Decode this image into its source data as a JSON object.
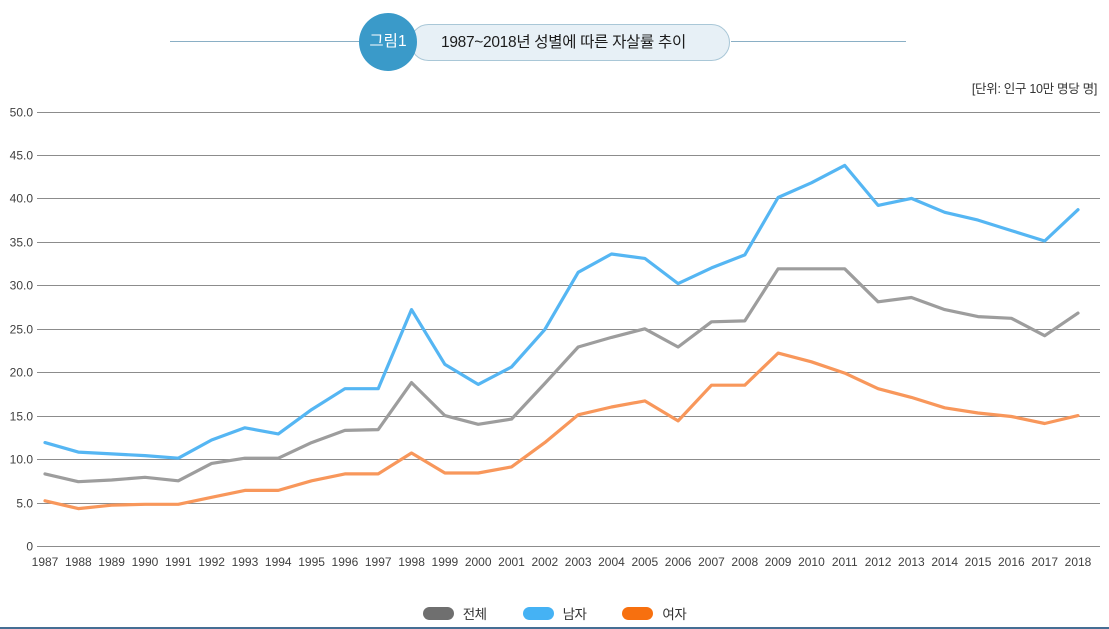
{
  "header": {
    "badge": "그림1",
    "title": "1987~2018년 성별에 따른 자살률 추이",
    "unit": "[단위: 인구 10만 명당 명]"
  },
  "colors": {
    "badge_bg": "#3A9AC9",
    "pill_bg": "#E7F0F6",
    "pill_border": "#A9C7D7",
    "header_rule": "#8AAFC5",
    "gridline": "#8C8C8C",
    "axis_text": "#404040",
    "bottom_border": "#456E94"
  },
  "chart_data": {
    "type": "line",
    "title": "1987~2018년 성별에 따른 자살률 추이",
    "unit_label": "[단위: 인구 10만 명당 명]",
    "grid": "horizontal",
    "legend_position": "bottom-center",
    "categories": [
      "1987",
      "1988",
      "1989",
      "1990",
      "1991",
      "1992",
      "1993",
      "1994",
      "1995",
      "1996",
      "1997",
      "1998",
      "1999",
      "2000",
      "2001",
      "2002",
      "2003",
      "2004",
      "2005",
      "2006",
      "2007",
      "2008",
      "2009",
      "2010",
      "2011",
      "2012",
      "2013",
      "2014",
      "2015",
      "2016",
      "2017",
      "2018"
    ],
    "y_axis": {
      "min": 0,
      "max": 50,
      "ticks": [
        {
          "value": 50,
          "label": "50.0"
        },
        {
          "value": 45,
          "label": "45.0"
        },
        {
          "value": 40,
          "label": "40.0"
        },
        {
          "value": 35,
          "label": "35.0"
        },
        {
          "value": 30,
          "label": "30.0"
        },
        {
          "value": 25,
          "label": "25.0"
        },
        {
          "value": 20,
          "label": "20.0"
        },
        {
          "value": 15,
          "label": "15.0"
        },
        {
          "value": 10,
          "label": "10.0"
        },
        {
          "value": 5,
          "label": "5.0"
        },
        {
          "value": 0,
          "label": "0"
        }
      ]
    },
    "series": [
      {
        "id": "total",
        "name": "전체",
        "color": "#9D9D9D",
        "legend_color": "#6F6F6F",
        "values": [
          8.3,
          7.4,
          7.6,
          7.9,
          7.5,
          9.5,
          10.1,
          10.1,
          11.9,
          13.3,
          13.4,
          18.8,
          15.0,
          14.0,
          14.6,
          18.7,
          22.9,
          24.0,
          25.0,
          22.9,
          25.8,
          25.9,
          31.9,
          31.9,
          31.9,
          28.1,
          28.6,
          27.2,
          26.4,
          26.2,
          24.2,
          26.8
        ]
      },
      {
        "id": "male",
        "name": "남자",
        "color": "#55B6F3",
        "legend_color": "#45B2F4",
        "values": [
          11.9,
          10.8,
          10.6,
          10.4,
          10.1,
          12.2,
          13.6,
          12.9,
          15.7,
          18.1,
          18.1,
          27.2,
          20.9,
          18.6,
          20.6,
          24.9,
          31.5,
          33.6,
          33.1,
          30.2,
          32.0,
          33.5,
          40.1,
          41.8,
          43.8,
          39.2,
          40.0,
          38.4,
          37.5,
          36.3,
          35.1,
          38.7
        ]
      },
      {
        "id": "female",
        "name": "여자",
        "color": "#F8975B",
        "legend_color": "#F7700F",
        "values": [
          5.2,
          4.3,
          4.7,
          4.8,
          4.8,
          5.6,
          6.4,
          6.4,
          7.5,
          8.3,
          8.3,
          10.7,
          8.4,
          8.4,
          9.1,
          11.9,
          15.1,
          16.0,
          16.7,
          14.4,
          18.5,
          18.5,
          22.2,
          21.2,
          19.9,
          18.1,
          17.1,
          15.9,
          15.3,
          14.9,
          14.1,
          15.0
        ]
      }
    ]
  }
}
